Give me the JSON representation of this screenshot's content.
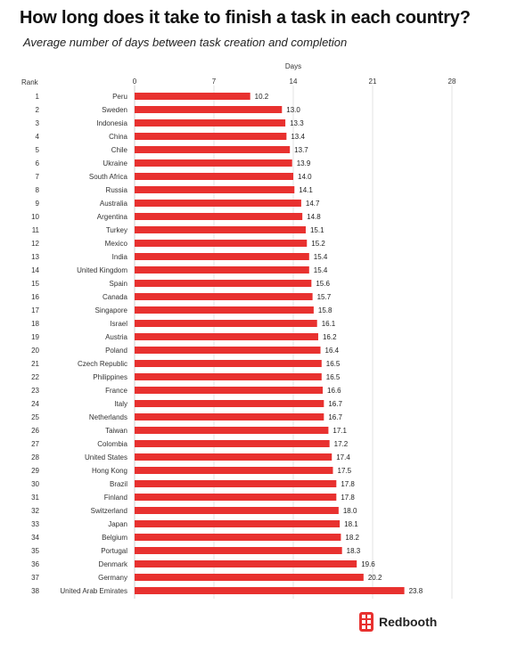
{
  "title": "How long does it take to finish a task in each country?",
  "subtitle": "Average number of days between task creation and completion",
  "brand": {
    "name": "Redbooth",
    "icon": "redbooth-logo-icon",
    "color": "#e8312f"
  },
  "chart_data": {
    "type": "bar",
    "orientation": "horizontal",
    "xlabel": "Days",
    "rank_header": "Rank",
    "xlim": [
      0,
      28
    ],
    "xticks": [
      0,
      7,
      14,
      21,
      28
    ],
    "grid": true,
    "bar_color": "#e8312f",
    "ranks": [
      "1",
      "2",
      "3",
      "4",
      "5",
      "6",
      "7",
      "8",
      "9",
      "10",
      "11",
      "12",
      "13",
      "14",
      "15",
      "16",
      "17",
      "18",
      "19",
      "20",
      "21",
      "22",
      "23",
      "24",
      "25",
      "26",
      "27",
      "28",
      "29",
      "30",
      "31",
      "32",
      "33",
      "34",
      "35",
      "36",
      "37",
      "38"
    ],
    "categories": [
      "Peru",
      "Sweden",
      "Indonesia",
      "China",
      "Chile",
      "Ukraine",
      "South Africa",
      "Russia",
      "Australia",
      "Argentina",
      "Turkey",
      "Mexico",
      "India",
      "United Kingdom",
      "Spain",
      "Canada",
      "Singapore",
      "Israel",
      "Austria",
      "Poland",
      "Czech Republic",
      "Philippines",
      "France",
      "Italy",
      "Netherlands",
      "Taiwan",
      "Colombia",
      "United States",
      "Hong Kong",
      "Brazil",
      "Finland",
      "Switzerland",
      "Japan",
      "Belgium",
      "Portugal",
      "Denmark",
      "Germany",
      "United Arab Emirates"
    ],
    "values": [
      10.2,
      13.0,
      13.3,
      13.4,
      13.7,
      13.9,
      14.0,
      14.1,
      14.7,
      14.8,
      15.1,
      15.2,
      15.4,
      15.4,
      15.6,
      15.7,
      15.8,
      16.1,
      16.2,
      16.4,
      16.5,
      16.5,
      16.6,
      16.7,
      16.7,
      17.1,
      17.2,
      17.4,
      17.5,
      17.8,
      17.8,
      18.0,
      18.1,
      18.2,
      18.3,
      19.6,
      20.2,
      23.8
    ],
    "value_labels": [
      "10.2",
      "13.0",
      "13.3",
      "13.4",
      "13.7",
      "13.9",
      "14.0",
      "14.1",
      "14.7",
      "14.8",
      "15.1",
      "15.2",
      "15.4",
      "15.4",
      "15.6",
      "15.7",
      "15.8",
      "16.1",
      "16.2",
      "16.4",
      "16.5",
      "16.5",
      "16.6",
      "16.7",
      "16.7",
      "17.1",
      "17.2",
      "17.4",
      "17.5",
      "17.8",
      "17.8",
      "18.0",
      "18.1",
      "18.2",
      "18.3",
      "19.6",
      "20.2",
      "23.8"
    ]
  }
}
